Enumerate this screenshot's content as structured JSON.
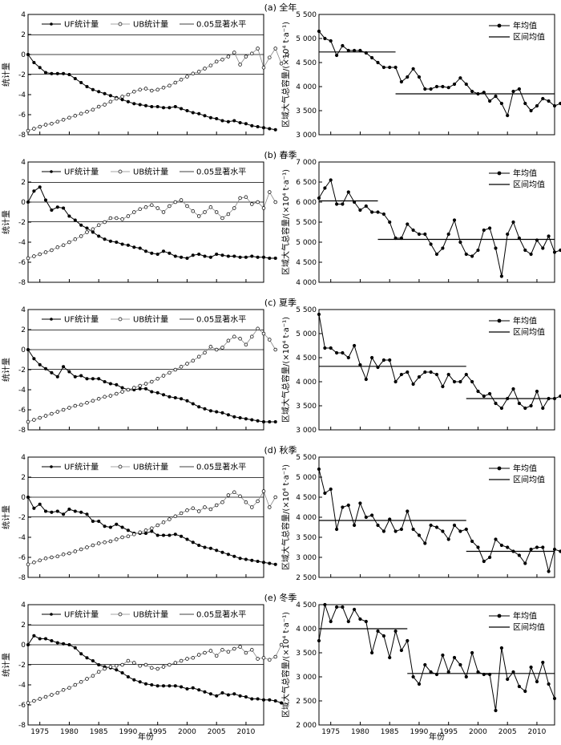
{
  "figure": {
    "x_axis_label": "年份",
    "x_ticks": [
      "1975",
      "1980",
      "1985",
      "1990",
      "1995",
      "2000",
      "2005",
      "2010"
    ],
    "left_y_label": "统计量",
    "right_y_label": "区域大气总容量/(×10⁴ t·a⁻¹)",
    "left_legend": {
      "uf": "UF统计量",
      "ub": "UB统计量",
      "sig": "0.05显著水平"
    },
    "right_legend": {
      "annual": "年均值",
      "interval": "区间均值"
    }
  },
  "chart_data": [
    {
      "panel": "(a) 全年",
      "type": "line",
      "mk": {
        "ylim": [
          -8,
          4
        ],
        "yticks": [
          "-8",
          "-6",
          "-4",
          "-2",
          "0",
          "2",
          "4"
        ],
        "significance_levels": [
          1.96,
          -1.96
        ],
        "series": [
          {
            "name": "UF统计量",
            "x_start": 1973,
            "values": [
              0.0,
              -0.8,
              -1.3,
              -1.8,
              -1.9,
              -1.9,
              -1.9,
              -2.0,
              -2.4,
              -2.8,
              -3.2,
              -3.5,
              -3.7,
              -3.9,
              -4.1,
              -4.3,
              -4.5,
              -4.7,
              -4.9,
              -5.0,
              -5.1,
              -5.2,
              -5.2,
              -5.3,
              -5.3,
              -5.2,
              -5.4,
              -5.6,
              -5.8,
              -5.9,
              -6.1,
              -6.3,
              -6.4,
              -6.6,
              -6.7,
              -6.6,
              -6.8,
              -6.9,
              -7.1,
              -7.2,
              -7.3,
              -7.4,
              -7.5
            ]
          },
          {
            "name": "UB统计量",
            "x_start": 1973,
            "values": [
              -7.6,
              -7.4,
              -7.2,
              -7.0,
              -6.9,
              -6.7,
              -6.5,
              -6.3,
              -6.1,
              -5.9,
              -5.7,
              -5.5,
              -5.2,
              -5.0,
              -4.7,
              -4.4,
              -4.2,
              -4.0,
              -3.7,
              -3.5,
              -3.4,
              -3.6,
              -3.5,
              -3.3,
              -3.1,
              -2.8,
              -2.5,
              -2.2,
              -1.9,
              -1.7,
              -1.4,
              -1.1,
              -0.7,
              -0.5,
              -0.2,
              0.2,
              -1.0,
              -0.2,
              0.1,
              0.6,
              -1.3,
              -0.3,
              0.6,
              -0.9,
              0.0
            ]
          }
        ]
      },
      "capacity": {
        "ylim": [
          3000,
          5500
        ],
        "yticks": [
          "3 000",
          "3 500",
          "4 000",
          "4 500",
          "5 000",
          "5 500"
        ],
        "annual": {
          "x_start": 1973,
          "values": [
            5150,
            5000,
            4950,
            4650,
            4850,
            4750,
            4750,
            4750,
            4700,
            4600,
            4500,
            4400,
            4400,
            4400,
            4100,
            4200,
            4370,
            4200,
            3950,
            3950,
            4000,
            4000,
            3980,
            4050,
            4180,
            4050,
            3900,
            3850,
            3880,
            3700,
            3800,
            3650,
            3400,
            3900,
            3950,
            3650,
            3500,
            3600,
            3750,
            3700,
            3600,
            3650,
            3600
          ]
        },
        "interval_means": [
          {
            "from": 1973,
            "to": 1986,
            "value": 4720
          },
          {
            "from": 1986,
            "to": 2013,
            "value": 3850
          }
        ]
      }
    },
    {
      "panel": "(b) 春季",
      "type": "line",
      "mk": {
        "ylim": [
          -8,
          4
        ],
        "yticks": [
          "-8",
          "-6",
          "-4",
          "-2",
          "0",
          "2",
          "4"
        ],
        "significance_levels": [
          1.96,
          -1.96
        ],
        "series": [
          {
            "name": "UF统计量",
            "x_start": 1973,
            "values": [
              0.0,
              1.1,
              1.5,
              0.2,
              -0.8,
              -0.5,
              -0.6,
              -1.4,
              -1.8,
              -2.3,
              -2.6,
              -3.0,
              -3.4,
              -3.7,
              -3.9,
              -4.0,
              -4.2,
              -4.3,
              -4.5,
              -4.6,
              -4.9,
              -5.1,
              -5.2,
              -4.9,
              -5.1,
              -5.4,
              -5.5,
              -5.6,
              -5.3,
              -5.2,
              -5.4,
              -5.5,
              -5.2,
              -5.3,
              -5.4,
              -5.4,
              -5.5,
              -5.5,
              -5.4,
              -5.5,
              -5.5,
              -5.6,
              -5.6
            ]
          },
          {
            "name": "UB统计量",
            "x_start": 1973,
            "values": [
              -5.6,
              -5.4,
              -5.2,
              -5.0,
              -4.8,
              -4.5,
              -4.3,
              -4.0,
              -3.7,
              -3.4,
              -3.0,
              -2.7,
              -2.3,
              -2.0,
              -1.6,
              -1.6,
              -1.7,
              -1.4,
              -1.0,
              -0.7,
              -0.5,
              -0.3,
              -0.6,
              -1.0,
              -0.4,
              0.0,
              0.2,
              -0.4,
              -0.9,
              -1.4,
              -1.0,
              -0.5,
              -1.0,
              -1.6,
              -1.2,
              -0.6,
              0.4,
              0.5,
              -0.2,
              0.0,
              -0.6,
              1.0,
              0.0
            ]
          }
        ]
      },
      "capacity": {
        "ylim": [
          4000,
          7000
        ],
        "yticks": [
          "4 000",
          "4 500",
          "5 000",
          "5 500",
          "6 000",
          "6 500",
          "7 000"
        ],
        "annual": {
          "x_start": 1973,
          "values": [
            6100,
            6350,
            6550,
            5950,
            5950,
            6250,
            6000,
            5800,
            5900,
            5750,
            5750,
            5700,
            5500,
            5100,
            5100,
            5450,
            5300,
            5200,
            5200,
            4950,
            4700,
            4850,
            5200,
            5550,
            5000,
            4700,
            4650,
            4800,
            5300,
            5350,
            4850,
            4150,
            5200,
            5500,
            5100,
            4800,
            4700,
            5050,
            4850,
            5150,
            4750,
            4800
          ]
        },
        "interval_means": [
          {
            "from": 1973,
            "to": 1983,
            "value": 6030
          },
          {
            "from": 1983,
            "to": 2013,
            "value": 5070
          }
        ]
      }
    },
    {
      "panel": "(c) 夏季",
      "type": "line",
      "mk": {
        "ylim": [
          -8,
          4
        ],
        "yticks": [
          "-8",
          "-6",
          "-4",
          "-2",
          "0",
          "2",
          "4"
        ],
        "significance_levels": [
          1.96,
          -1.96
        ],
        "series": [
          {
            "name": "UF统计量",
            "x_start": 1973,
            "values": [
              0.0,
              -0.9,
              -1.5,
              -1.9,
              -2.3,
              -2.7,
              -1.7,
              -2.2,
              -2.7,
              -2.6,
              -2.9,
              -2.9,
              -2.9,
              -3.2,
              -3.4,
              -3.5,
              -3.8,
              -4.0,
              -4.0,
              -3.9,
              -3.9,
              -4.2,
              -4.3,
              -4.5,
              -4.7,
              -4.8,
              -4.9,
              -5.1,
              -5.4,
              -5.7,
              -5.9,
              -6.1,
              -6.2,
              -6.3,
              -6.5,
              -6.7,
              -6.8,
              -6.9,
              -7.0,
              -7.1,
              -7.2,
              -7.2,
              -7.2
            ]
          },
          {
            "name": "UB统计量",
            "x_start": 1973,
            "values": [
              -7.2,
              -7.0,
              -6.8,
              -6.6,
              -6.4,
              -6.2,
              -6.0,
              -5.8,
              -5.6,
              -5.5,
              -5.3,
              -5.1,
              -4.9,
              -4.7,
              -4.6,
              -4.4,
              -4.2,
              -4.0,
              -3.8,
              -3.6,
              -3.4,
              -3.2,
              -2.9,
              -2.6,
              -2.3,
              -2.0,
              -1.7,
              -1.4,
              -1.1,
              -0.7,
              -0.3,
              0.3,
              0.0,
              0.2,
              0.9,
              1.3,
              1.1,
              0.5,
              1.3,
              2.1,
              1.6,
              1.0,
              0.0
            ]
          }
        ]
      },
      "capacity": {
        "ylim": [
          3000,
          5500
        ],
        "yticks": [
          "3 000",
          "3 500",
          "4 000",
          "4 500",
          "5 000",
          "5 500"
        ],
        "annual": {
          "x_start": 1973,
          "values": [
            5400,
            4700,
            4700,
            4600,
            4600,
            4500,
            4750,
            4350,
            4050,
            4500,
            4300,
            4450,
            4450,
            4000,
            4150,
            4200,
            3950,
            4100,
            4200,
            4200,
            4150,
            3900,
            4150,
            4000,
            4000,
            4150,
            4000,
            3800,
            3700,
            3750,
            3550,
            3450,
            3650,
            3850,
            3550,
            3450,
            3500,
            3800,
            3450,
            3650,
            3650,
            3700
          ]
        },
        "interval_means": [
          {
            "from": 1973,
            "to": 1998,
            "value": 4320
          },
          {
            "from": 1998,
            "to": 2013,
            "value": 3650
          }
        ]
      }
    },
    {
      "panel": "(d) 秋季",
      "type": "line",
      "mk": {
        "ylim": [
          -8,
          4
        ],
        "yticks": [
          "-8",
          "-6",
          "-4",
          "-2",
          "0",
          "2",
          "4"
        ],
        "significance_levels": [
          1.96,
          -1.96
        ],
        "series": [
          {
            "name": "UF统计量",
            "x_start": 1973,
            "values": [
              0.0,
              -1.1,
              -0.7,
              -1.4,
              -1.5,
              -1.4,
              -1.7,
              -1.2,
              -1.4,
              -1.5,
              -1.7,
              -2.4,
              -2.4,
              -2.9,
              -3.0,
              -2.7,
              -3.0,
              -3.3,
              -3.6,
              -3.6,
              -3.6,
              -3.4,
              -3.8,
              -3.8,
              -3.8,
              -3.7,
              -3.9,
              -4.2,
              -4.5,
              -4.8,
              -5.0,
              -5.1,
              -5.3,
              -5.5,
              -5.7,
              -5.9,
              -6.1,
              -6.2,
              -6.3,
              -6.4,
              -6.5,
              -6.6,
              -6.7
            ]
          },
          {
            "name": "UB统计量",
            "x_start": 1973,
            "values": [
              -6.7,
              -6.5,
              -6.3,
              -6.1,
              -6.0,
              -5.9,
              -5.7,
              -5.6,
              -5.4,
              -5.2,
              -5.0,
              -4.8,
              -4.6,
              -4.5,
              -4.4,
              -4.2,
              -4.0,
              -3.9,
              -3.7,
              -3.5,
              -3.3,
              -3.1,
              -2.8,
              -2.5,
              -2.2,
              -1.9,
              -1.6,
              -1.3,
              -1.1,
              -1.4,
              -1.0,
              -1.2,
              -0.8,
              -0.5,
              0.2,
              0.5,
              0.1,
              -0.5,
              -1.0,
              -0.4,
              0.6,
              -1.0,
              0.0
            ]
          }
        ]
      },
      "capacity": {
        "ylim": [
          2500,
          5500
        ],
        "yticks": [
          "2 500",
          "3 000",
          "3 500",
          "4 000",
          "4 500",
          "5 000",
          "5 500"
        ],
        "annual": {
          "x_start": 1973,
          "values": [
            5200,
            4600,
            4700,
            3700,
            4250,
            4300,
            3800,
            4350,
            4000,
            4050,
            3800,
            3650,
            3950,
            3650,
            3700,
            4150,
            3700,
            3550,
            3350,
            3800,
            3750,
            3650,
            3450,
            3800,
            3650,
            3700,
            3400,
            3250,
            2900,
            3000,
            3450,
            3300,
            3250,
            3150,
            3050,
            2850,
            3200,
            3250,
            3250,
            2650,
            3200,
            3150
          ]
        },
        "interval_means": [
          {
            "from": 1973,
            "to": 1998,
            "value": 3920
          },
          {
            "from": 1998,
            "to": 2013,
            "value": 3150
          }
        ]
      }
    },
    {
      "panel": "(e) 冬季",
      "type": "line",
      "mk": {
        "ylim": [
          -8,
          4
        ],
        "yticks": [
          "-8",
          "-6",
          "-4",
          "-2",
          "0",
          "2",
          "4"
        ],
        "significance_levels": [
          1.96,
          -1.96
        ],
        "series": [
          {
            "name": "UF统计量",
            "x_start": 1973,
            "values": [
              0.0,
              0.9,
              0.6,
              0.6,
              0.4,
              0.2,
              0.1,
              0.0,
              -0.3,
              -0.9,
              -1.3,
              -1.6,
              -2.0,
              -2.2,
              -2.3,
              -2.5,
              -2.8,
              -3.2,
              -3.5,
              -3.7,
              -3.9,
              -4.0,
              -4.1,
              -4.1,
              -4.1,
              -4.1,
              -4.2,
              -4.4,
              -4.3,
              -4.5,
              -4.7,
              -4.9,
              -5.1,
              -4.8,
              -5.0,
              -4.9,
              -5.1,
              -5.2,
              -5.4,
              -5.4,
              -5.5,
              -5.5,
              -5.6,
              -5.8
            ]
          },
          {
            "name": "UB统计量",
            "x_start": 1973,
            "values": [
              -5.8,
              -5.6,
              -5.4,
              -5.2,
              -5.0,
              -4.8,
              -4.5,
              -4.3,
              -4.0,
              -3.7,
              -3.4,
              -3.1,
              -2.7,
              -2.4,
              -2.2,
              -2.1,
              -2.0,
              -1.6,
              -1.8,
              -2.1,
              -2.0,
              -2.3,
              -2.4,
              -2.2,
              -2.0,
              -1.8,
              -1.6,
              -1.4,
              -1.3,
              -1.0,
              -0.8,
              -0.6,
              -1.1,
              -0.5,
              -0.7,
              -0.4,
              -0.2,
              -0.8,
              -0.5,
              -1.4,
              -1.3,
              -1.5,
              -1.2,
              0.0
            ]
          }
        ]
      },
      "capacity": {
        "ylim": [
          2000,
          4500
        ],
        "yticks": [
          "2 000",
          "2 500",
          "3 000",
          "3 500",
          "4 000",
          "4 500"
        ],
        "annual": {
          "x_start": 1973,
          "values": [
            3750,
            4500,
            4150,
            4450,
            4450,
            4150,
            4400,
            4200,
            4150,
            3500,
            3950,
            3850,
            3400,
            3950,
            3550,
            3750,
            3000,
            2850,
            3250,
            3100,
            3050,
            3450,
            3100,
            3400,
            3250,
            3000,
            3500,
            3100,
            3050,
            3050,
            2300,
            3600,
            2950,
            3100,
            2800,
            2700,
            3200,
            2900,
            3300,
            2850,
            2550
          ]
        },
        "interval_means": [
          {
            "from": 1973,
            "to": 1988,
            "value": 4000
          },
          {
            "from": 1988,
            "to": 2013,
            "value": 3070
          }
        ]
      }
    }
  ]
}
